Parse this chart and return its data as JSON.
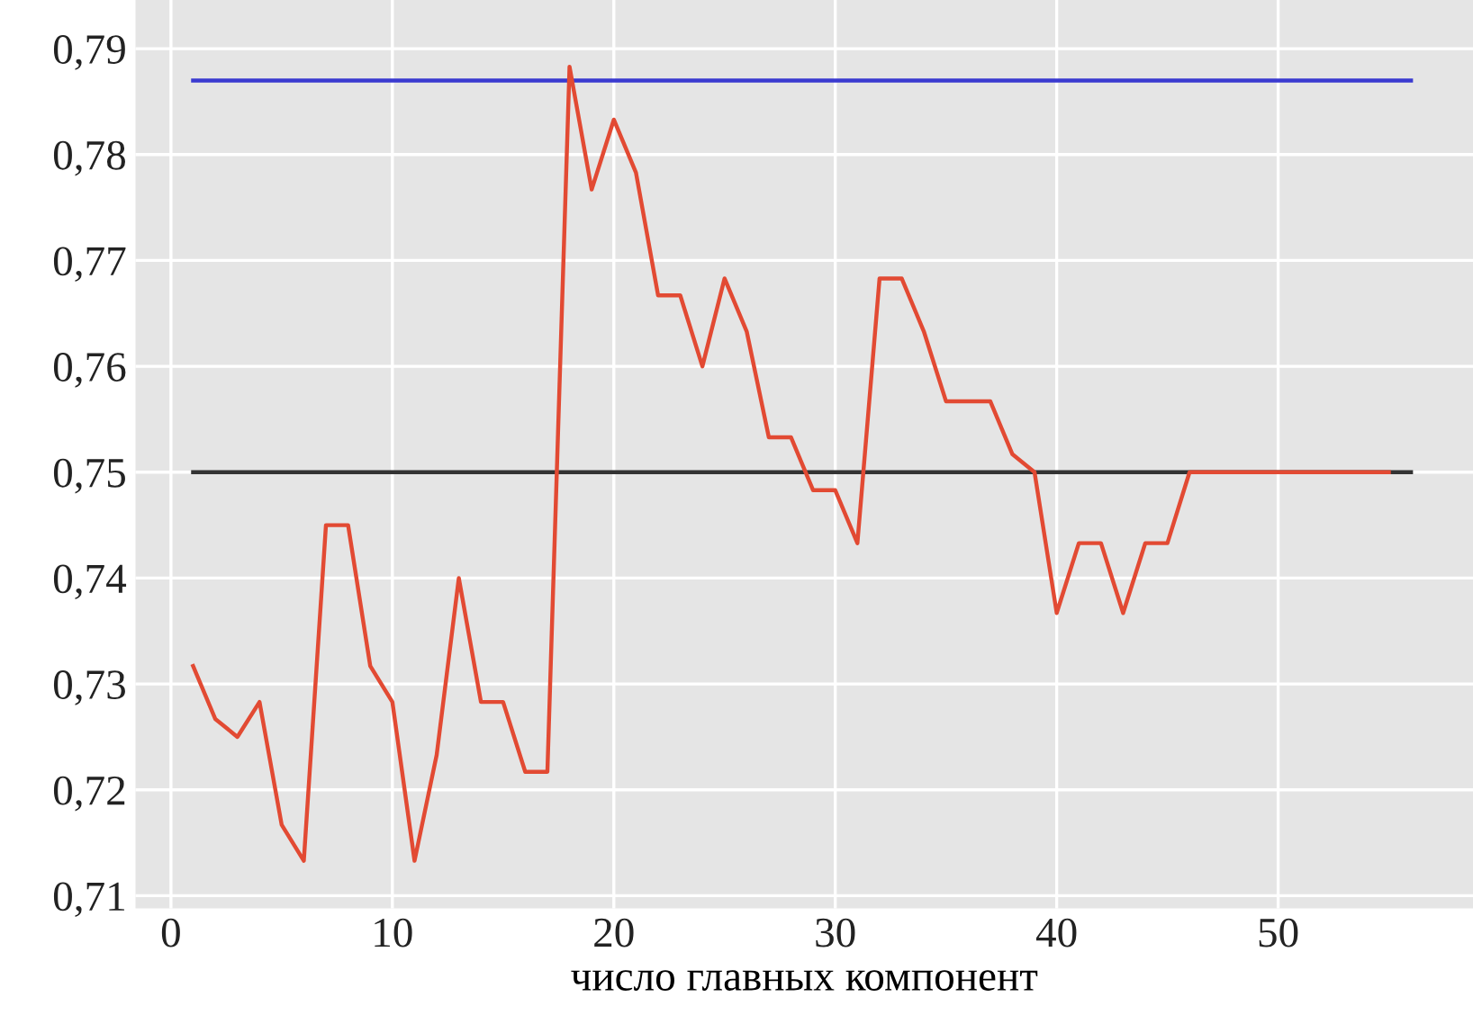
{
  "chart_data": {
    "type": "line",
    "xlabel": "число главных компонент",
    "series": [
      {
        "color": "#e24a33",
        "x": [
          1,
          2,
          3,
          4,
          5,
          6,
          7,
          8,
          9,
          10,
          11,
          12,
          13,
          14,
          15,
          16,
          17,
          18,
          19,
          20,
          21,
          22,
          23,
          24,
          25,
          26,
          27,
          28,
          29,
          30,
          31,
          32,
          33,
          34,
          35,
          36,
          37,
          38,
          39,
          40,
          41,
          42,
          43,
          44,
          45,
          46,
          47,
          48,
          49,
          50,
          51,
          52,
          53,
          54,
          55
        ],
        "values": [
          0.7317,
          0.7267,
          0.725,
          0.7283,
          0.7167,
          0.7133,
          0.745,
          0.745,
          0.7317,
          0.7283,
          0.7133,
          0.7233,
          0.74,
          0.7283,
          0.7283,
          0.7217,
          0.7217,
          0.7883,
          0.7767,
          0.7833,
          0.7783,
          0.7667,
          0.7667,
          0.76,
          0.7683,
          0.7633,
          0.7533,
          0.7533,
          0.7483,
          0.7483,
          0.7433,
          0.7683,
          0.7683,
          0.7633,
          0.7567,
          0.7567,
          0.7567,
          0.7517,
          0.75,
          0.7367,
          0.7433,
          0.7433,
          0.7367,
          0.7433,
          0.7433,
          0.75,
          0.75,
          0.75,
          0.75,
          0.75,
          0.75,
          0.75,
          0.75,
          0.75,
          0.75
        ]
      },
      {
        "color": "#3a3ad0",
        "x": [
          1,
          56
        ],
        "values": [
          0.787,
          0.787
        ]
      },
      {
        "color": "#333333",
        "x": [
          1,
          56
        ],
        "values": [
          0.75,
          0.75
        ]
      }
    ],
    "xlim": [
      -1.6,
      58.8
    ],
    "ylim": [
      0.7088,
      0.7946
    ],
    "xticks": [
      0,
      10,
      20,
      30,
      40,
      50
    ],
    "yticks": [
      {
        "value": 0.71,
        "label": "0,71"
      },
      {
        "value": 0.72,
        "label": "0,72"
      },
      {
        "value": 0.73,
        "label": "0,73"
      },
      {
        "value": 0.74,
        "label": "0,74"
      },
      {
        "value": 0.75,
        "label": "0,75"
      },
      {
        "value": 0.76,
        "label": "0,76"
      },
      {
        "value": 0.77,
        "label": "0,77"
      },
      {
        "value": 0.78,
        "label": "0,78"
      },
      {
        "value": 0.79,
        "label": "0,79"
      }
    ],
    "grid": true
  }
}
